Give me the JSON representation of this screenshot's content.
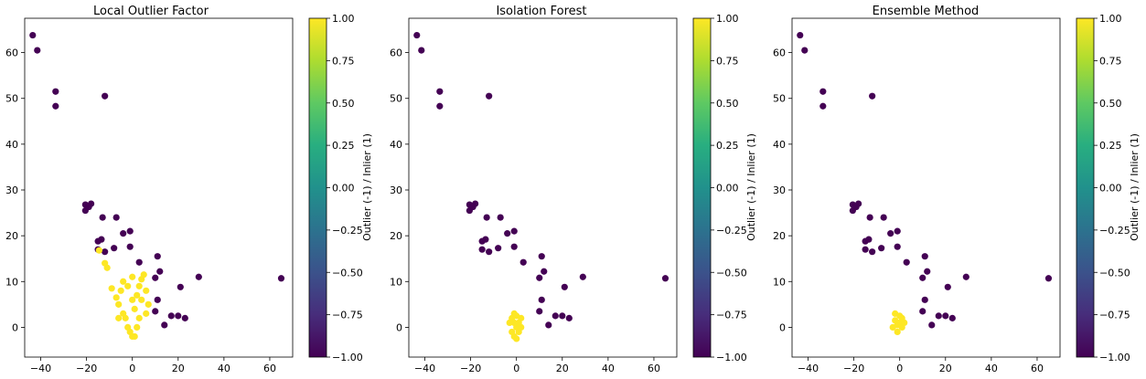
{
  "chart_data": [
    {
      "type": "scatter",
      "title": "Local Outlier Factor",
      "xlim": [
        -47,
        70
      ],
      "ylim": [
        -6.5,
        67.5
      ],
      "xticks": [
        -40,
        -20,
        0,
        20,
        40,
        60
      ],
      "yticks": [
        0,
        10,
        20,
        30,
        40,
        50,
        60
      ],
      "colorbar": {
        "label": "Outlier (-1) / Inlier (1)",
        "range": [
          -1.0,
          1.0
        ],
        "ticks": [
          "1.00",
          "0.75",
          "0.50",
          "0.25",
          "0.00",
          "−0.25",
          "−0.50",
          "−0.75",
          "−1.00"
        ],
        "colormap": "viridis"
      },
      "outliers": [
        [
          -43.5,
          63.8
        ],
        [
          -41.5,
          60.5
        ],
        [
          -33.5,
          51.5
        ],
        [
          -33.5,
          48.3
        ],
        [
          -12,
          50.5
        ],
        [
          -20.5,
          26.8
        ],
        [
          -20.5,
          25.5
        ],
        [
          -18,
          27
        ],
        [
          -19,
          26.3
        ],
        [
          -13,
          24
        ],
        [
          -7,
          24
        ],
        [
          -4,
          20.5
        ],
        [
          -8,
          17.3
        ],
        [
          -1,
          21
        ],
        [
          -15,
          18.8
        ],
        [
          -13.5,
          19.2
        ],
        [
          -15,
          17
        ],
        [
          -12,
          16.5
        ],
        [
          3,
          14.2
        ],
        [
          -1,
          17.6
        ],
        [
          11,
          15.5
        ],
        [
          29,
          11
        ],
        [
          21,
          8.8
        ],
        [
          17,
          2.5
        ],
        [
          20,
          2.5
        ],
        [
          23,
          2
        ],
        [
          65,
          10.7
        ],
        [
          12,
          12.2
        ],
        [
          10,
          10.8
        ],
        [
          11,
          6
        ],
        [
          10,
          3.5
        ],
        [
          14,
          0.5
        ]
      ],
      "inliers": [
        [
          -14.5,
          16.8
        ],
        [
          -12,
          14
        ],
        [
          -11,
          13
        ],
        [
          -9,
          8.5
        ],
        [
          -7,
          6.5
        ],
        [
          -6,
          5
        ],
        [
          -4,
          3
        ],
        [
          -3,
          2
        ],
        [
          -2,
          0
        ],
        [
          -1,
          -1
        ],
        [
          0,
          -2
        ],
        [
          1,
          4
        ],
        [
          2,
          7
        ],
        [
          3,
          9
        ],
        [
          4,
          10.5
        ],
        [
          5,
          11.5
        ],
        [
          6,
          8
        ],
        [
          7,
          5
        ],
        [
          3,
          2
        ],
        [
          2,
          0
        ],
        [
          1,
          -2
        ],
        [
          -5,
          8
        ],
        [
          -4,
          10
        ],
        [
          -2,
          9
        ],
        [
          0,
          11
        ],
        [
          6,
          3
        ],
        [
          4,
          6
        ],
        [
          -6,
          2
        ],
        [
          0,
          6
        ]
      ]
    },
    {
      "type": "scatter",
      "title": "Isolation Forest",
      "xlim": [
        -47,
        70
      ],
      "ylim": [
        -6.5,
        67.5
      ],
      "xticks": [
        -40,
        -20,
        0,
        20,
        40,
        60
      ],
      "yticks": [
        0,
        10,
        20,
        30,
        40,
        50,
        60
      ],
      "colorbar": {
        "label": "Outlier (-1) / Inlier (1)",
        "range": [
          -1.0,
          1.0
        ],
        "ticks": [
          "1.00",
          "0.75",
          "0.50",
          "0.25",
          "0.00",
          "−0.25",
          "−0.50",
          "−0.75",
          "−1.00"
        ],
        "colormap": "viridis"
      },
      "outliers": [
        [
          -43.5,
          63.8
        ],
        [
          -41.5,
          60.5
        ],
        [
          -33.5,
          51.5
        ],
        [
          -33.5,
          48.3
        ],
        [
          -12,
          50.5
        ],
        [
          -20.5,
          26.8
        ],
        [
          -20.5,
          25.5
        ],
        [
          -18,
          27
        ],
        [
          -19,
          26.3
        ],
        [
          -13,
          24
        ],
        [
          -7,
          24
        ],
        [
          -4,
          20.5
        ],
        [
          -8,
          17.3
        ],
        [
          -1,
          21
        ],
        [
          -15,
          18.8
        ],
        [
          -13.5,
          19.2
        ],
        [
          -15,
          17
        ],
        [
          -12,
          16.5
        ],
        [
          3,
          14.2
        ],
        [
          -1,
          17.6
        ],
        [
          11,
          15.5
        ],
        [
          29,
          11
        ],
        [
          21,
          8.8
        ],
        [
          17,
          2.5
        ],
        [
          20,
          2.5
        ],
        [
          23,
          2
        ],
        [
          65,
          10.7
        ],
        [
          12,
          12.2
        ],
        [
          10,
          10.8
        ],
        [
          11,
          6
        ],
        [
          10,
          3.5
        ],
        [
          14,
          0.5
        ]
      ],
      "inliers": [
        [
          -2,
          2
        ],
        [
          -1,
          1
        ],
        [
          0,
          0
        ],
        [
          1,
          -1
        ],
        [
          -1,
          -2
        ],
        [
          0,
          -2.5
        ],
        [
          2,
          0
        ],
        [
          -3,
          1
        ],
        [
          0,
          2.5
        ],
        [
          1,
          1
        ],
        [
          -2,
          -1
        ],
        [
          -1,
          3
        ],
        [
          2,
          2
        ]
      ]
    },
    {
      "type": "scatter",
      "title": "Ensemble Method",
      "xlim": [
        -47,
        70
      ],
      "ylim": [
        -6.5,
        67.5
      ],
      "xticks": [
        -40,
        -20,
        0,
        20,
        40,
        60
      ],
      "yticks": [
        0,
        10,
        20,
        30,
        40,
        50,
        60
      ],
      "colorbar": {
        "label": "Outlier (-1) / Inlier (1)",
        "range": [
          -1.0,
          1.0
        ],
        "ticks": [
          "1.00",
          "0.75",
          "0.50",
          "0.25",
          "0.00",
          "−0.25",
          "−0.50",
          "−0.75",
          "−1.00"
        ],
        "colormap": "viridis"
      },
      "outliers": [
        [
          -43.5,
          63.8
        ],
        [
          -41.5,
          60.5
        ],
        [
          -33.5,
          51.5
        ],
        [
          -33.5,
          48.3
        ],
        [
          -12,
          50.5
        ],
        [
          -20.5,
          26.8
        ],
        [
          -20.5,
          25.5
        ],
        [
          -18,
          27
        ],
        [
          -19,
          26.3
        ],
        [
          -13,
          24
        ],
        [
          -7,
          24
        ],
        [
          -4,
          20.5
        ],
        [
          -8,
          17.3
        ],
        [
          -1,
          21
        ],
        [
          -15,
          18.8
        ],
        [
          -13.5,
          19.2
        ],
        [
          -15,
          17
        ],
        [
          -12,
          16.5
        ],
        [
          3,
          14.2
        ],
        [
          -1,
          17.6
        ],
        [
          11,
          15.5
        ],
        [
          29,
          11
        ],
        [
          21,
          8.8
        ],
        [
          17,
          2.5
        ],
        [
          20,
          2.5
        ],
        [
          23,
          2
        ],
        [
          65,
          10.7
        ],
        [
          12,
          12.2
        ],
        [
          10,
          10.8
        ],
        [
          11,
          6
        ],
        [
          10,
          3.5
        ],
        [
          14,
          0.5
        ]
      ],
      "inliers": [
        [
          -2,
          1.5
        ],
        [
          -1,
          0.5
        ],
        [
          0,
          1
        ],
        [
          1,
          0
        ],
        [
          -3,
          0
        ],
        [
          0,
          2.5
        ],
        [
          2,
          1
        ],
        [
          -1,
          -1
        ],
        [
          1,
          2
        ],
        [
          -2,
          3
        ]
      ]
    }
  ]
}
